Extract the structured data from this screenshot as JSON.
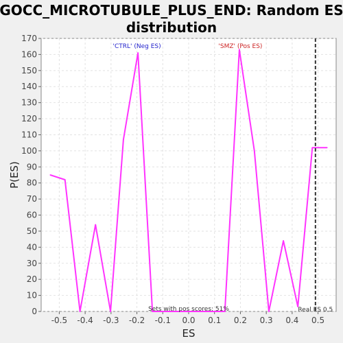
{
  "chart_data": {
    "type": "line",
    "title_line1": "GOCC_MICROTUBULE_PLUS_END: Random ES",
    "title_line2": "distribution",
    "xlabel": "ES",
    "ylabel": "P(ES)",
    "xlim": [
      -0.57,
      0.57
    ],
    "ylim": [
      0,
      170
    ],
    "x_ticks": [
      "-0.5",
      "-0.4",
      "-0.3",
      "-0.2",
      "-0.1",
      "0.0",
      "0.1",
      "0.2",
      "0.3",
      "0.4",
      "0.5"
    ],
    "x_tick_values": [
      -0.5,
      -0.4,
      -0.3,
      -0.2,
      -0.1,
      0.0,
      0.1,
      0.2,
      0.3,
      0.4,
      0.5
    ],
    "y_ticks": [
      "0",
      "10",
      "20",
      "30",
      "40",
      "50",
      "60",
      "70",
      "80",
      "90",
      "100",
      "110",
      "120",
      "130",
      "140",
      "150",
      "160",
      "170"
    ],
    "y_tick_values": [
      0,
      10,
      20,
      30,
      40,
      50,
      60,
      70,
      80,
      90,
      100,
      110,
      120,
      130,
      140,
      150,
      160,
      170
    ],
    "grid": true,
    "series": [
      {
        "color": "#ff33ff",
        "x": [
          -0.535,
          -0.478,
          -0.42,
          -0.36,
          -0.302,
          -0.252,
          -0.196,
          -0.14,
          -0.08,
          0.0,
          0.08,
          0.14,
          0.196,
          0.254,
          0.31,
          0.366,
          0.422,
          0.478,
          0.535
        ],
        "y": [
          85,
          82,
          0,
          54,
          0,
          107,
          161,
          0,
          0,
          0,
          0,
          0,
          163,
          100,
          0,
          44,
          3,
          102,
          102
        ]
      }
    ],
    "real_es": {
      "value": 0.49,
      "label": "Real ES 0.5",
      "color": "#333333"
    },
    "annotations": {
      "neg_label": "'CTRL' (Neg ES)",
      "neg_color": "#2222cc",
      "pos_label": "'SMZ' (Pos ES)",
      "pos_color": "#cc2222",
      "sets_label": "Sets with pos scores: 51%"
    }
  }
}
